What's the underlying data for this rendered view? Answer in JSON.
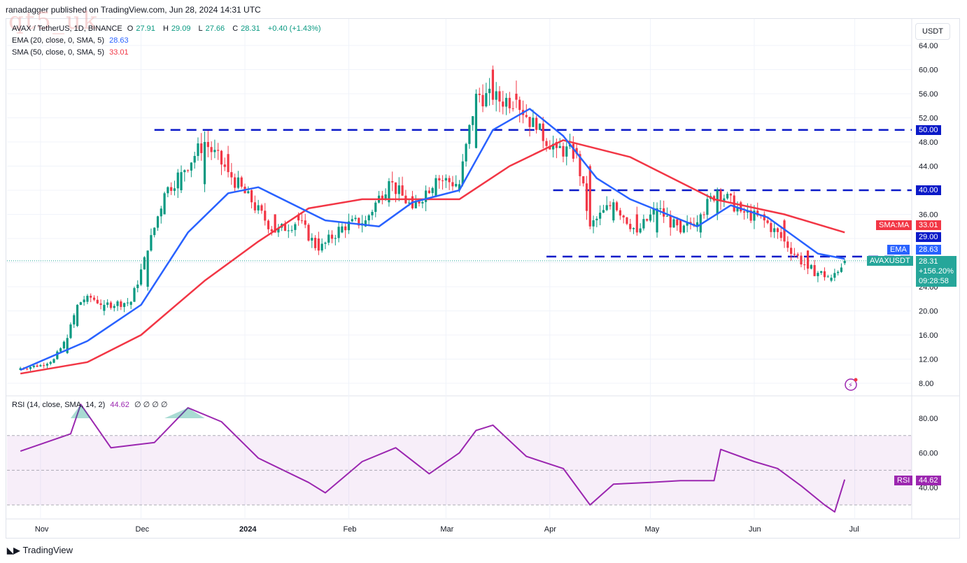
{
  "header": {
    "published": "ranadagger published on TradingView.com, Jun 28, 2024 14:31 UTC"
  },
  "watermark": "qt5_uk",
  "symbol": {
    "name": "AVAX / TetherUS, 1D, BINANCE",
    "open_label": "O",
    "open": "27.91",
    "high_label": "H",
    "high": "29.09",
    "low_label": "L",
    "low": "27.66",
    "close_label": "C",
    "close": "28.31",
    "change": "+0.40 (+1.43%)"
  },
  "indicators": {
    "ema": {
      "label": "EMA (20, close, 0, SMA, 5)",
      "value": "28.63",
      "color": "#2962ff"
    },
    "sma": {
      "label": "SMA (50, close, 0, SMA, 5)",
      "value": "33.01",
      "color": "#f23645"
    },
    "rsi": {
      "label": "RSI (14, close, SMA, 14, 2)",
      "value": "44.62",
      "extras": "∅ ∅ ∅ ∅",
      "color": "#9c27b0"
    }
  },
  "currency_button": "USDT",
  "price_axis": [
    "64.00",
    "60.00",
    "56.00",
    "52.00",
    "48.00",
    "44.00",
    "40.00",
    "36.00",
    "32.00",
    "28.00",
    "24.00",
    "20.00",
    "16.00",
    "12.00",
    "8.00"
  ],
  "rsi_axis": [
    "80.00",
    "60.00",
    "40.00"
  ],
  "time_axis": [
    "Nov",
    "Dec",
    "2024",
    "Feb",
    "Mar",
    "Apr",
    "May",
    "Jun",
    "Jul"
  ],
  "price_tags": {
    "level_50": "50.00",
    "level_40": "40.00",
    "sma_label": "SMA:MA",
    "sma_value": "33.01",
    "level_29": "29.00",
    "ema_label": "EMA",
    "ema_value": "28.63",
    "symbol_label": "AVAXUSDT",
    "last": "28.31",
    "pct": "+156.20%",
    "countdown": "09:28:58",
    "rsi_label": "RSI",
    "rsi_value": "44.62"
  },
  "logo": "TradingView",
  "colors": {
    "up": "#089981",
    "down": "#f23645",
    "ema": "#2962ff",
    "sma": "#f23645",
    "rsi": "#9c27b0",
    "level": "#0b1ac8"
  },
  "chart_data": {
    "type": "candlestick",
    "symbol": "AVAXUSDT",
    "interval": "1D",
    "ylim": [
      7,
      67
    ],
    "ohlc_approx": [
      [
        "2023-10-26",
        10.2,
        10.9,
        9.9,
        10.5
      ],
      [
        "2023-11-01",
        10.8,
        11.3,
        10.5,
        11.0
      ],
      [
        "2023-11-05",
        11.4,
        12.3,
        11.2,
        12.0
      ],
      [
        "2023-11-09",
        13.0,
        16.5,
        12.8,
        15.5
      ],
      [
        "2023-11-12",
        17.5,
        22.0,
        17.0,
        21.0
      ],
      [
        "2023-11-15",
        21.5,
        24.5,
        19.0,
        22.5
      ],
      [
        "2023-11-20",
        20.0,
        22.0,
        19.5,
        21.0
      ],
      [
        "2023-11-28",
        21.0,
        22.5,
        20.5,
        21.5
      ],
      [
        "2023-12-03",
        24.0,
        30.5,
        24.0,
        30.0
      ],
      [
        "2023-12-08",
        36.0,
        40.0,
        34.0,
        39.5
      ],
      [
        "2023-12-13",
        40.0,
        44.0,
        38.0,
        43.0
      ],
      [
        "2023-12-20",
        41.0,
        49.5,
        40.0,
        48.0
      ],
      [
        "2023-12-27",
        46.0,
        49.8,
        42.0,
        43.0
      ],
      [
        "2024-01-03",
        40.0,
        43.0,
        32.0,
        38.0
      ],
      [
        "2024-01-10",
        36.0,
        40.0,
        32.0,
        33.0
      ],
      [
        "2024-01-17",
        36.0,
        38.0,
        34.0,
        35.0
      ],
      [
        "2024-01-23",
        32.0,
        33.0,
        27.0,
        30.0
      ],
      [
        "2024-01-30",
        33.0,
        35.5,
        31.5,
        34.0
      ],
      [
        "2024-02-06",
        34.0,
        37.0,
        33.0,
        35.0
      ],
      [
        "2024-02-13",
        38.0,
        43.0,
        37.0,
        41.5
      ],
      [
        "2024-02-20",
        39.0,
        41.0,
        35.5,
        37.0
      ],
      [
        "2024-02-27",
        39.0,
        44.0,
        38.0,
        42.0
      ],
      [
        "2024-03-05",
        40.0,
        44.0,
        35.0,
        41.0
      ],
      [
        "2024-03-10",
        47.0,
        60.0,
        46.0,
        56.0
      ],
      [
        "2024-03-15",
        60.0,
        65.5,
        51.0,
        55.0
      ],
      [
        "2024-03-22",
        56.0,
        59.0,
        52.0,
        55.0
      ],
      [
        "2024-03-28",
        52.0,
        55.0,
        48.0,
        50.0
      ],
      [
        "2024-04-03",
        48.0,
        50.5,
        44.0,
        47.0
      ],
      [
        "2024-04-09",
        47.0,
        49.0,
        44.0,
        46.0
      ],
      [
        "2024-04-13",
        44.0,
        46.0,
        29.0,
        34.0
      ],
      [
        "2024-04-20",
        35.0,
        39.5,
        33.0,
        38.0
      ],
      [
        "2024-04-27",
        36.0,
        37.0,
        31.0,
        33.0
      ],
      [
        "2024-05-03",
        33.0,
        38.0,
        32.5,
        37.0
      ],
      [
        "2024-05-10",
        35.0,
        36.0,
        32.0,
        33.0
      ],
      [
        "2024-05-16",
        33.0,
        37.0,
        32.0,
        36.0
      ],
      [
        "2024-05-21",
        36.0,
        42.0,
        35.0,
        40.0
      ],
      [
        "2024-05-28",
        38.0,
        39.0,
        35.5,
        36.5
      ],
      [
        "2024-06-04",
        36.0,
        37.5,
        34.0,
        35.0
      ],
      [
        "2024-06-10",
        35.0,
        36.0,
        30.0,
        31.5
      ],
      [
        "2024-06-17",
        30.0,
        31.0,
        25.0,
        27.0
      ],
      [
        "2024-06-24",
        25.0,
        26.5,
        23.5,
        25.5
      ],
      [
        "2024-06-28",
        27.91,
        29.09,
        27.66,
        28.31
      ]
    ],
    "ema20_approx": [
      [
        "2023-10-26",
        10.2
      ],
      [
        "2023-11-15",
        15.0
      ],
      [
        "2023-12-01",
        21.0
      ],
      [
        "2023-12-15",
        33.0
      ],
      [
        "2023-12-27",
        39.5
      ],
      [
        "2024-01-05",
        40.5
      ],
      [
        "2024-01-25",
        35.0
      ],
      [
        "2024-02-10",
        34.0
      ],
      [
        "2024-02-20",
        38.0
      ],
      [
        "2024-03-05",
        40.0
      ],
      [
        "2024-03-15",
        50.0
      ],
      [
        "2024-03-26",
        53.5
      ],
      [
        "2024-04-05",
        49.0
      ],
      [
        "2024-04-15",
        42.0
      ],
      [
        "2024-04-25",
        38.5
      ],
      [
        "2024-05-15",
        34.0
      ],
      [
        "2024-05-25",
        37.5
      ],
      [
        "2024-06-05",
        35.5
      ],
      [
        "2024-06-20",
        29.5
      ],
      [
        "2024-06-28",
        28.63
      ]
    ],
    "sma50_approx": [
      [
        "2023-10-26",
        9.6
      ],
      [
        "2023-11-15",
        11.5
      ],
      [
        "2023-12-01",
        16.0
      ],
      [
        "2023-12-20",
        25.0
      ],
      [
        "2024-01-05",
        31.5
      ],
      [
        "2024-01-20",
        37.0
      ],
      [
        "2024-02-05",
        38.5
      ],
      [
        "2024-03-05",
        38.5
      ],
      [
        "2024-03-20",
        44.0
      ],
      [
        "2024-04-05",
        48.3
      ],
      [
        "2024-04-25",
        45.5
      ],
      [
        "2024-05-20",
        38.5
      ],
      [
        "2024-06-10",
        36.0
      ],
      [
        "2024-06-28",
        33.01
      ]
    ],
    "rsi_approx": [
      [
        "2023-10-26",
        61
      ],
      [
        "2023-11-10",
        71
      ],
      [
        "2023-11-13",
        88
      ],
      [
        "2023-11-22",
        63
      ],
      [
        "2023-12-05",
        66
      ],
      [
        "2023-12-15",
        86
      ],
      [
        "2023-12-25",
        78
      ],
      [
        "2024-01-05",
        57
      ],
      [
        "2024-01-20",
        43
      ],
      [
        "2024-01-25",
        37
      ],
      [
        "2024-02-05",
        55
      ],
      [
        "2024-02-15",
        63
      ],
      [
        "2024-02-25",
        48
      ],
      [
        "2024-03-05",
        60
      ],
      [
        "2024-03-10",
        73
      ],
      [
        "2024-03-15",
        76
      ],
      [
        "2024-03-25",
        58
      ],
      [
        "2024-04-05",
        51
      ],
      [
        "2024-04-13",
        30
      ],
      [
        "2024-04-20",
        42
      ],
      [
        "2024-05-01",
        43
      ],
      [
        "2024-05-10",
        44
      ],
      [
        "2024-05-20",
        44
      ],
      [
        "2024-05-22",
        62
      ],
      [
        "2024-06-01",
        55
      ],
      [
        "2024-06-08",
        51
      ],
      [
        "2024-06-15",
        41
      ],
      [
        "2024-06-22",
        30
      ],
      [
        "2024-06-25",
        26
      ],
      [
        "2024-06-28",
        44.62
      ]
    ],
    "horizontal_levels": [
      50.0,
      40.0,
      29.0
    ],
    "rsi_bands": [
      70,
      50,
      30
    ]
  }
}
